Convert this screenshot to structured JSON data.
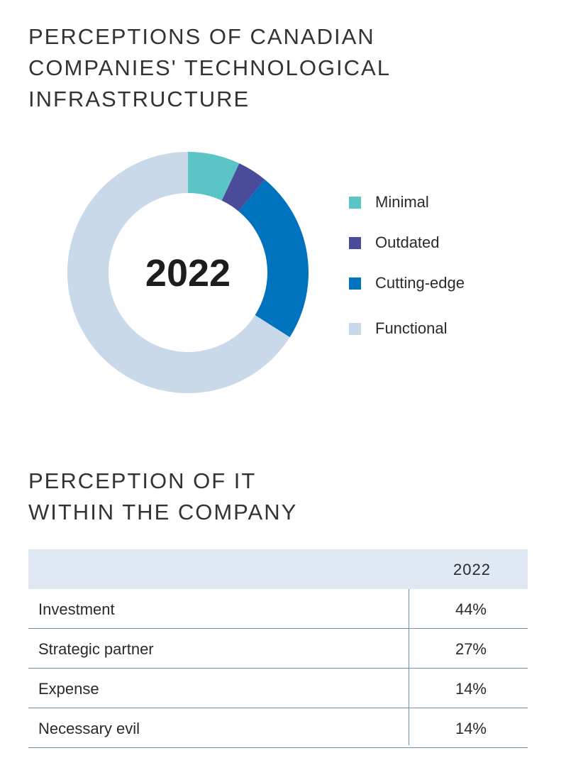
{
  "page": {
    "chart_title": "PERCEPTIONS OF CANADIAN\nCOMPANIES' TECHNOLOGICAL\nINFRASTRUCTURE",
    "table_title": "PERCEPTION OF IT\nWITHIN THE COMPANY"
  },
  "chart_data": {
    "type": "pie",
    "center_label": "2022",
    "categories": [
      "Minimal",
      "Outdated",
      "Cutting-edge",
      "Functional"
    ],
    "values": [
      7,
      4,
      23,
      66
    ],
    "colors": [
      "#5bc5c6",
      "#4b4b9b",
      "#0073bf",
      "#c9d9ea"
    ],
    "legend_position": "right"
  },
  "table": {
    "column_header": "2022",
    "rows": [
      {
        "label": "Investment",
        "value": "44%"
      },
      {
        "label": "Strategic partner",
        "value": "27%"
      },
      {
        "label": "Expense",
        "value": "14%"
      },
      {
        "label": "Necessary evil",
        "value": "14%"
      }
    ]
  }
}
